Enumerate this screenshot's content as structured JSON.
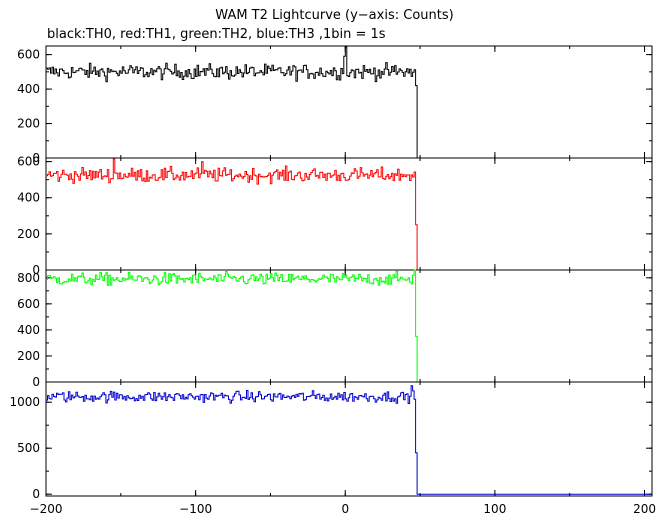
{
  "title": "WAM T2 Lightcurve (y−axis: Counts)",
  "subtitle": "black:TH0, red:TH1, green:TH2, blue:TH3 ,1bin = 1s",
  "chart_data": {
    "type": "line",
    "xlim": [
      -200,
      205
    ],
    "x_ticks": [
      -200,
      -100,
      0,
      100,
      200
    ],
    "x_tick_labels": [
      "−200",
      "−100",
      "0",
      "100",
      "200"
    ],
    "step_x": 48,
    "panels": [
      {
        "name": "TH0",
        "color": "#000000",
        "ylim": [
          0,
          650
        ],
        "y_ticks": [
          0,
          200,
          400,
          600
        ],
        "level": 500,
        "noise": 22,
        "after_step": 0,
        "spikes": [
          {
            "x": 0,
            "y": 645
          },
          {
            "x": -1,
            "y": 590
          },
          {
            "x": 47,
            "y": 420
          }
        ]
      },
      {
        "name": "TH1",
        "color": "#ff0000",
        "ylim": [
          0,
          620
        ],
        "y_ticks": [
          0,
          200,
          400,
          600
        ],
        "level": 525,
        "noise": 20,
        "after_step": 0,
        "spikes": [
          {
            "x": -155,
            "y": 615
          },
          {
            "x": -96,
            "y": 600
          },
          {
            "x": 47,
            "y": 250
          }
        ]
      },
      {
        "name": "TH2",
        "color": "#00ff00",
        "ylim": [
          0,
          860
        ],
        "y_ticks": [
          0,
          200,
          400,
          600,
          800
        ],
        "level": 790,
        "noise": 24,
        "after_step": 0,
        "spikes": [
          {
            "x": 46,
            "y": 860
          },
          {
            "x": 47,
            "y": 350
          }
        ]
      },
      {
        "name": "TH3",
        "color": "#0000cd",
        "ylim": [
          -20,
          1220
        ],
        "y_ticks": [
          0,
          500,
          1000
        ],
        "level": 1060,
        "noise": 30,
        "after_step": 0,
        "spikes": [
          {
            "x": 44,
            "y": 1180
          },
          {
            "x": 47,
            "y": 450
          }
        ]
      }
    ]
  }
}
